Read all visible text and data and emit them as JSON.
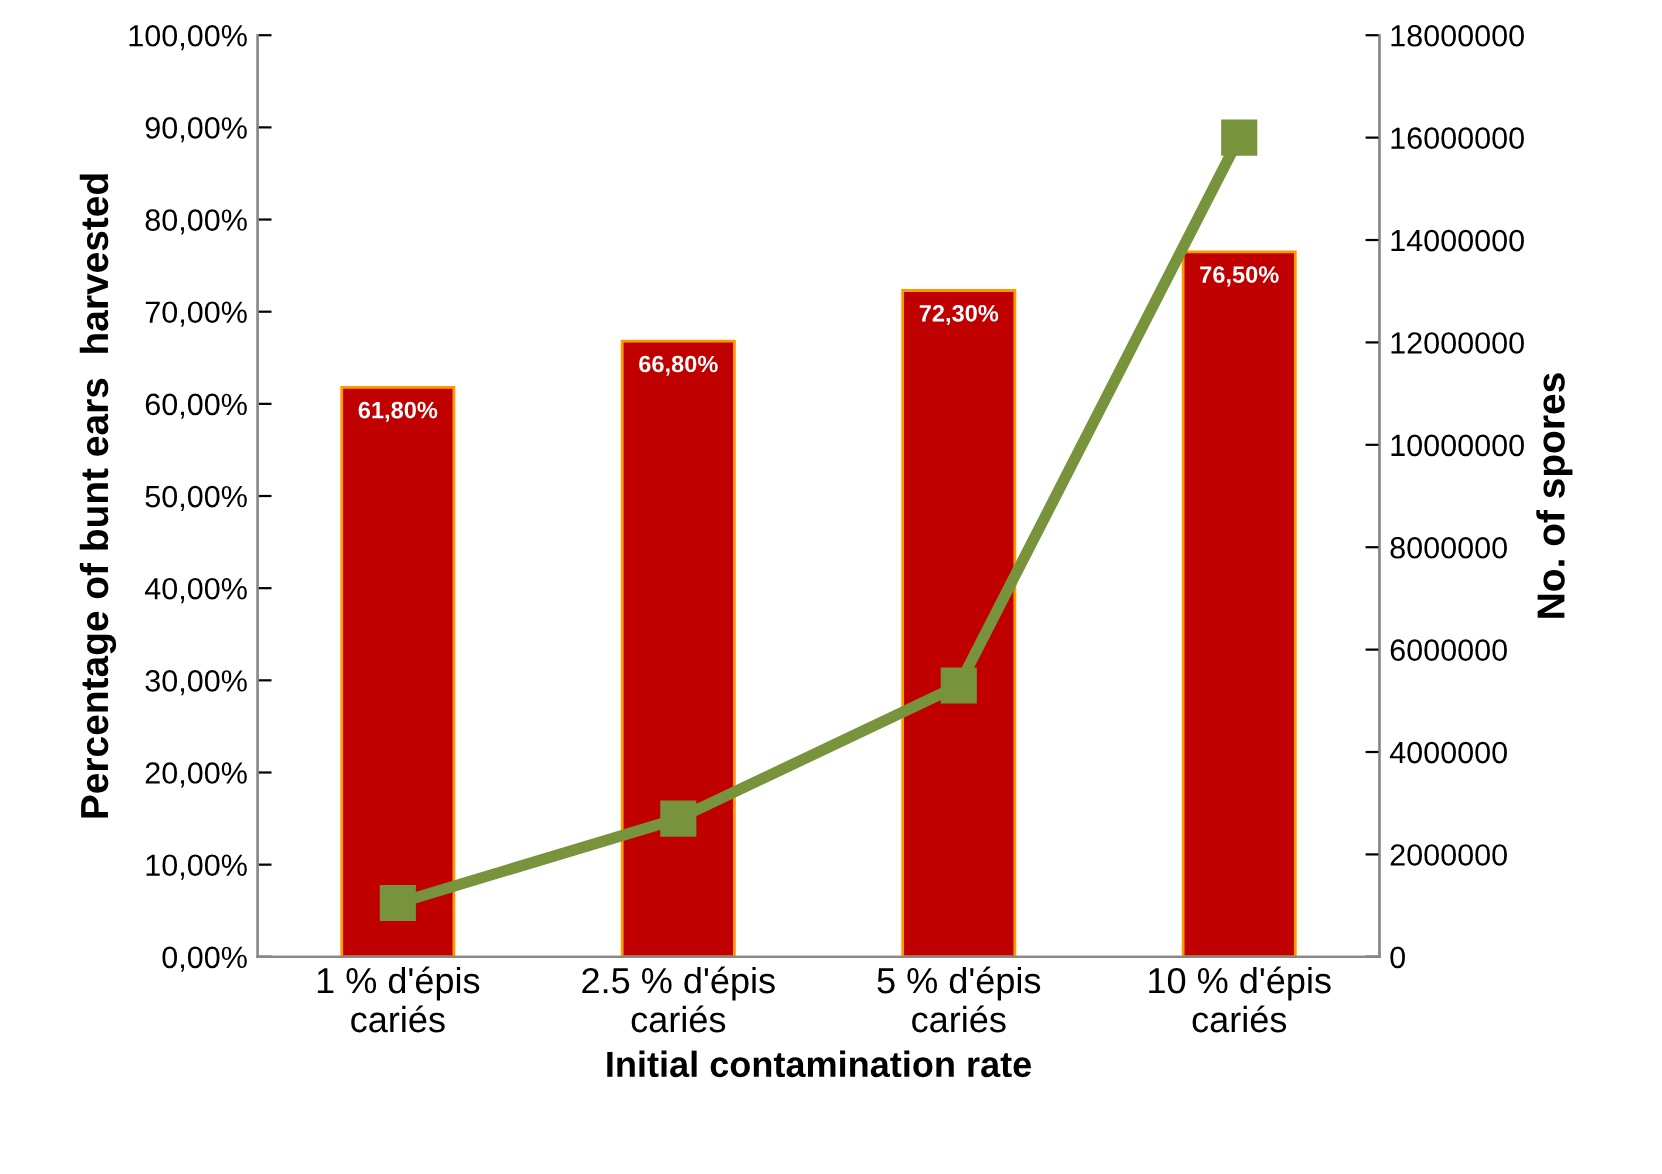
{
  "chart_data": {
    "type": "bar",
    "xlabel": "Initial contamination rate",
    "ylabel": "Percentage of bunt ears  harvested",
    "y2label": "No. of spores",
    "categories": [
      "1 % d'épis\ncariés",
      "2.5 % d'épis\ncariés",
      "5 % d'épis\ncariés",
      "10 % d'épis\ncariés"
    ],
    "series": [
      {
        "color": "#c00000",
        "values": [
          61.8,
          66.8,
          72.3,
          76.5
        ],
        "value_labels": [
          "61,80%",
          "66,80%",
          "72,30%",
          "76,50%"
        ]
      },
      {
        "type": "line",
        "axis": "y2",
        "color": "#77933c",
        "marker": "square",
        "line_style": "solid",
        "values": [
          1050000,
          2700000,
          5300000,
          16000000
        ]
      }
    ],
    "ylim": [
      0,
      100
    ],
    "yticks": [
      {
        "value": 0,
        "label": "0,00%"
      },
      {
        "value": 10,
        "label": "10,00%"
      },
      {
        "value": 20,
        "label": "20,00%"
      },
      {
        "value": 30,
        "label": "30,00%"
      },
      {
        "value": 40,
        "label": "40,00%"
      },
      {
        "value": 50,
        "label": "50,00%"
      },
      {
        "value": 60,
        "label": "60,00%"
      },
      {
        "value": 70,
        "label": "70,00%"
      },
      {
        "value": 80,
        "label": "80,00%"
      },
      {
        "value": 90,
        "label": "90,00%"
      },
      {
        "value": 100,
        "label": "100,00%"
      }
    ],
    "y2lim": [
      0,
      18000000
    ],
    "y2ticks": [
      0,
      2000000,
      4000000,
      6000000,
      8000000,
      10000000,
      12000000,
      14000000,
      16000000,
      18000000
    ],
    "grid": false,
    "legend": false
  }
}
